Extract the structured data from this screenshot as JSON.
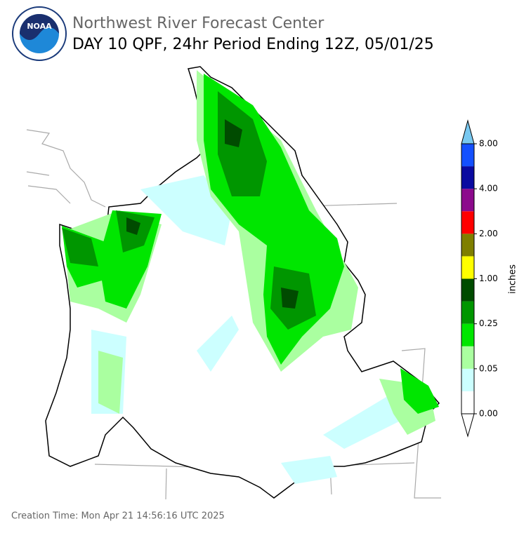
{
  "header": {
    "logo_text": "NOAA",
    "title": "Northwest River Forecast Center",
    "subtitle": "DAY 10 QPF, 24hr Period Ending 12Z, 05/01/25"
  },
  "colorbar": {
    "label": "inches",
    "colors": [
      "#ffffff",
      "#ccffff",
      "#aaffa0",
      "#00e600",
      "#009600",
      "#004b00",
      "#ffff00",
      "#7f7f00",
      "#ff0000",
      "#8c0a8c",
      "#0a0aa0",
      "#1450ff"
    ],
    "under_color": "#ffffff",
    "over_color": "#78c8f0",
    "tick_labels": [
      "0.00",
      "0.05",
      "0.25",
      "1.00",
      "2.00",
      "4.00",
      "8.00"
    ]
  },
  "footer": {
    "creation_time": "Creation Time: Mon Apr 21 14:56:16 UTC 2025"
  }
}
